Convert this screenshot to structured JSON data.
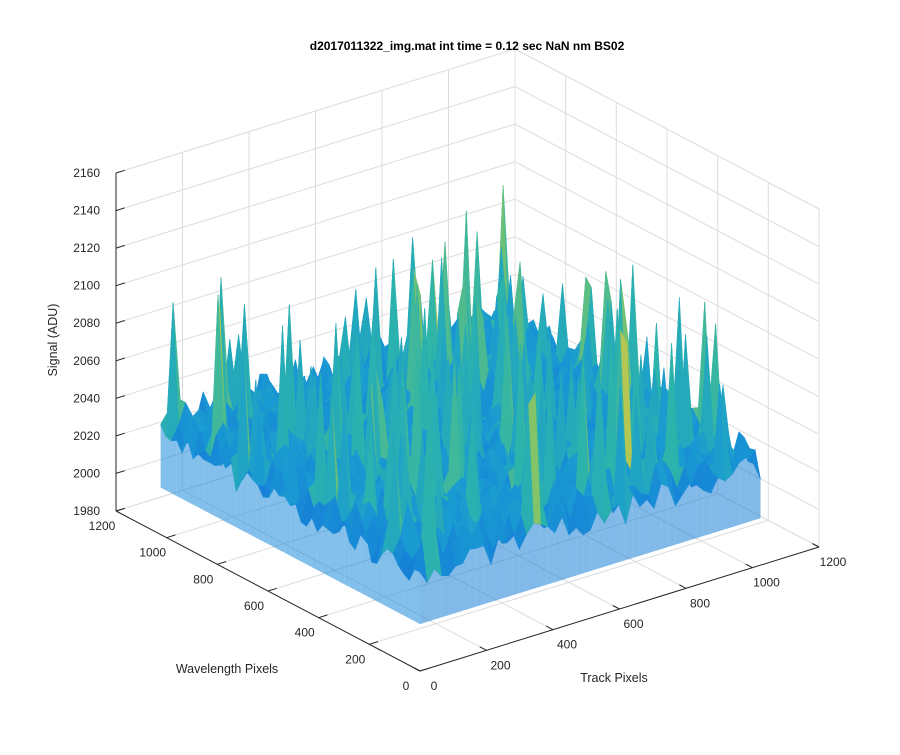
{
  "chart_data": {
    "type": "surface3d",
    "title": "d2017011322_img.mat int time = 0.12 sec  NaN nm BS02",
    "xlabel": "Track Pixels",
    "ylabel": "Wavelength Pixels",
    "zlabel": "Signal (ADU)",
    "xlim": [
      0,
      1200
    ],
    "ylim": [
      0,
      1200
    ],
    "zlim": [
      1980,
      2160
    ],
    "xticks": [
      "0",
      "200",
      "400",
      "600",
      "800",
      "1000",
      "1200"
    ],
    "yticks": [
      "0",
      "200",
      "400",
      "600",
      "800",
      "1000",
      "1200"
    ],
    "zticks": [
      "1980",
      "2000",
      "2020",
      "2040",
      "2060",
      "2080",
      "2100",
      "2120",
      "2140",
      "2160"
    ],
    "grid": true,
    "colormap": "parula",
    "data_extent": {
      "x": [
        0,
        1024
      ],
      "y": [
        0,
        1024
      ]
    },
    "signal_baseline": 2040,
    "signal_range": [
      2000,
      2145
    ]
  }
}
